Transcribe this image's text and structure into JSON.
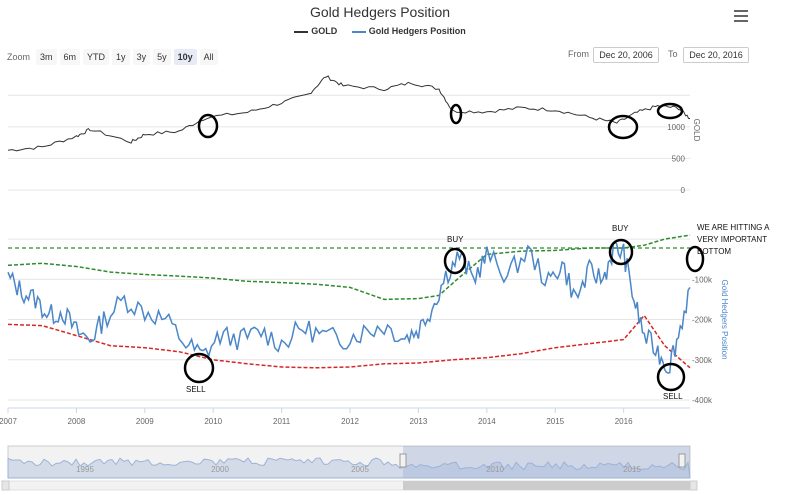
{
  "title": "Gold Hedgers Position",
  "legend": [
    {
      "name": "GOLD",
      "color": "#333333"
    },
    {
      "name": "Gold Hedgers Position",
      "color": "#4a86c8"
    }
  ],
  "zoom": {
    "label": "Zoom",
    "buttons": [
      "3m",
      "6m",
      "YTD",
      "1y",
      "3y",
      "5y",
      "10y",
      "All"
    ],
    "active": "10y"
  },
  "range": {
    "from_label": "From",
    "from_value": "Dec 20, 2006",
    "to_label": "To",
    "to_value": "Dec 20, 2016"
  },
  "colors": {
    "gold": "#333333",
    "hedgers": "#4a86c8",
    "upper_band": "#2e8b2e",
    "lower_band": "#d62728",
    "navigator": "#9bb3d8"
  },
  "chart_data": [
    {
      "type": "line",
      "series": [
        {
          "name": "GOLD",
          "x": [
            2007.0,
            2007.5,
            2008.0,
            2008.2,
            2008.8,
            2009.0,
            2009.5,
            2009.9,
            2010.5,
            2011.0,
            2011.4,
            2011.65,
            2011.9,
            2012.5,
            2012.9,
            2013.3,
            2013.5,
            2014.0,
            2014.5,
            2015.0,
            2015.5,
            2015.9,
            2016.2,
            2016.5,
            2016.8,
            2016.97
          ],
          "values": [
            630,
            680,
            850,
            960,
            760,
            880,
            930,
            1150,
            1230,
            1380,
            1520,
            1800,
            1650,
            1600,
            1700,
            1600,
            1250,
            1240,
            1300,
            1270,
            1150,
            1060,
            1230,
            1330,
            1300,
            1130
          ]
        }
      ],
      "yaxis": {
        "title": "GOLD",
        "ticks": [
          "0",
          "500",
          "1000"
        ],
        "range": [
          0,
          1900
        ]
      }
    },
    {
      "type": "line",
      "series": [
        {
          "name": "Gold Hedgers Position",
          "x": [
            2007.0,
            2007.2,
            2007.4,
            2007.6,
            2007.8,
            2008.0,
            2008.2,
            2008.4,
            2008.7,
            2009.0,
            2009.3,
            2009.6,
            2009.85,
            2010.1,
            2010.4,
            2010.7,
            2011.0,
            2011.3,
            2011.6,
            2011.9,
            2012.2,
            2012.5,
            2012.8,
            2013.0,
            2013.2,
            2013.4,
            2013.6,
            2013.8,
            2014.0,
            2014.3,
            2014.6,
            2014.9,
            2015.1,
            2015.3,
            2015.5,
            2015.7,
            2015.85,
            2016.0,
            2016.15,
            2016.3,
            2016.5,
            2016.65,
            2016.8,
            2016.97
          ],
          "values": [
            -95000,
            -130000,
            -150000,
            -190000,
            -180000,
            -230000,
            -250000,
            -200000,
            -150000,
            -180000,
            -200000,
            -260000,
            -290000,
            -240000,
            -250000,
            -230000,
            -260000,
            -220000,
            -240000,
            -250000,
            -230000,
            -215000,
            -245000,
            -225000,
            -170000,
            -90000,
            -40000,
            -100000,
            -40000,
            -90000,
            -30000,
            -110000,
            -60000,
            -150000,
            -80000,
            -100000,
            -25000,
            -35000,
            -150000,
            -240000,
            -280000,
            -320000,
            -240000,
            -120000
          ]
        },
        {
          "name": "Upper band",
          "x": [
            2007.0,
            2007.5,
            2008.0,
            2008.5,
            2009.0,
            2009.5,
            2010.0,
            2010.5,
            2011.0,
            2011.5,
            2012.0,
            2012.5,
            2013.0,
            2013.3,
            2013.6,
            2014.0,
            2014.5,
            2015.0,
            2015.5,
            2016.0,
            2016.3,
            2016.6,
            2016.97
          ],
          "values": [
            -65000,
            -60000,
            -68000,
            -82000,
            -88000,
            -92000,
            -97000,
            -105000,
            -108000,
            -112000,
            -120000,
            -150000,
            -148000,
            -140000,
            -95000,
            -38000,
            -30000,
            -28000,
            -22000,
            -22000,
            -15000,
            0,
            10000
          ]
        },
        {
          "name": "Lower band",
          "x": [
            2007.0,
            2007.5,
            2008.0,
            2008.5,
            2009.0,
            2009.5,
            2010.0,
            2010.5,
            2011.0,
            2011.5,
            2012.0,
            2012.5,
            2013.0,
            2013.5,
            2014.0,
            2014.5,
            2015.0,
            2015.5,
            2016.0,
            2016.3,
            2016.6,
            2016.97
          ],
          "values": [
            -212000,
            -215000,
            -240000,
            -265000,
            -270000,
            -280000,
            -300000,
            -310000,
            -318000,
            -320000,
            -318000,
            -310000,
            -308000,
            -300000,
            -295000,
            -285000,
            -270000,
            -260000,
            -250000,
            -190000,
            -265000,
            -320000
          ]
        }
      ],
      "yaxis": {
        "title": "Gold Hedgers Position",
        "ticks": [
          "-100k",
          "-200k",
          "-300k",
          "-400k"
        ],
        "range": [
          -420000,
          60000
        ]
      },
      "xaxis": {
        "ticks": [
          "2007",
          "2008",
          "2009",
          "2010",
          "2011",
          "2012",
          "2013",
          "2014",
          "2015",
          "2016"
        ],
        "range": [
          2007.0,
          2016.97
        ]
      },
      "annotations": [
        {
          "text": "BUY",
          "x": 2013.5,
          "y": -10000
        },
        {
          "text": "BUY",
          "x": 2015.85,
          "y": 8000
        },
        {
          "text": "SELL",
          "x": 2009.75,
          "y": -340000
        },
        {
          "text": "SELL",
          "x": 2016.65,
          "y": -358000
        },
        {
          "text": "WE ARE HITTING A",
          "x": 2016.97,
          "y": 35000
        },
        {
          "text": "VERY IMPORTANT",
          "x": 2016.97,
          "y": 13000
        },
        {
          "text": "BOTTOM",
          "x": 2016.97,
          "y": -9000
        }
      ]
    },
    {
      "type": "area",
      "xaxis": {
        "ticks": [
          "1995",
          "2000",
          "2005",
          "2010",
          "2015"
        ]
      }
    }
  ]
}
